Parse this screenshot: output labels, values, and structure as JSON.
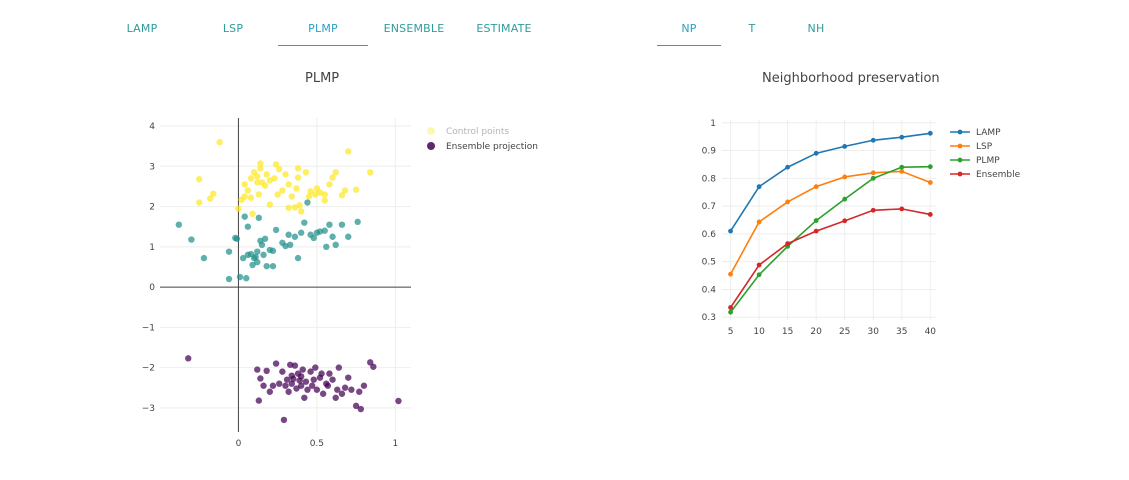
{
  "left_tabs": [
    "LAMP",
    "LSP",
    "PLMP",
    "ENSEMBLE",
    "ESTIMATE"
  ],
  "left_active": "PLMP",
  "right_tabs": [
    "NP",
    "T",
    "NH"
  ],
  "right_active": "NP",
  "colors": {
    "tab_text": "#2e9c9c",
    "tab_active": "#2aa0c0",
    "scatter_groups": [
      "#440154",
      "#21918c",
      "#fde725"
    ],
    "lamp": "#1f77b4",
    "lsp": "#ff7f0e",
    "plmp": "#2ca02c",
    "ensemble": "#d62728"
  },
  "chart_data": [
    {
      "type": "scatter",
      "title": "PLMP",
      "xlabel": "",
      "ylabel": "",
      "xlim": [
        -0.5,
        1.1
      ],
      "ylim": [
        -3.6,
        4.2
      ],
      "x_ticks": [
        0,
        0.5,
        1
      ],
      "y_ticks": [
        4,
        3,
        2,
        1,
        0,
        -1,
        -2,
        -3
      ],
      "legend_position": "top-right",
      "legend": [
        {
          "name": "Control points",
          "color": "#fde725",
          "faded": true
        },
        {
          "name": "Ensemble projection",
          "color": "#440154",
          "faded": false
        }
      ],
      "groups": [
        {
          "color": "#fde725",
          "points": [
            [
              -0.12,
              3.6
            ],
            [
              -0.25,
              2.68
            ],
            [
              -0.25,
              2.1
            ],
            [
              -0.18,
              2.2
            ],
            [
              -0.16,
              2.32
            ],
            [
              0.0,
              1.95
            ],
            [
              0.02,
              2.17
            ],
            [
              0.04,
              2.25
            ],
            [
              0.04,
              2.55
            ],
            [
              0.08,
              2.7
            ],
            [
              0.09,
              1.82
            ],
            [
              0.12,
              2.6
            ],
            [
              0.1,
              2.85
            ],
            [
              0.12,
              2.75
            ],
            [
              0.14,
              2.95
            ],
            [
              0.14,
              3.07
            ],
            [
              0.15,
              2.6
            ],
            [
              0.18,
              2.8
            ],
            [
              0.2,
              2.65
            ],
            [
              0.23,
              2.7
            ],
            [
              0.24,
              3.05
            ],
            [
              0.26,
              2.93
            ],
            [
              0.28,
              2.4
            ],
            [
              0.3,
              2.8
            ],
            [
              0.32,
              2.55
            ],
            [
              0.34,
              2.25
            ],
            [
              0.36,
              1.98
            ],
            [
              0.37,
              2.45
            ],
            [
              0.38,
              2.72
            ],
            [
              0.38,
              2.95
            ],
            [
              0.39,
              2.03
            ],
            [
              0.4,
              1.88
            ],
            [
              0.43,
              2.85
            ],
            [
              0.46,
              2.38
            ],
            [
              0.49,
              2.3
            ],
            [
              0.5,
              2.45
            ],
            [
              0.52,
              2.35
            ],
            [
              0.55,
              2.3
            ],
            [
              0.58,
              2.55
            ],
            [
              0.6,
              2.72
            ],
            [
              0.62,
              2.85
            ],
            [
              0.66,
              2.28
            ],
            [
              0.68,
              2.4
            ],
            [
              0.7,
              3.37
            ],
            [
              0.75,
              2.42
            ],
            [
              0.84,
              2.85
            ],
            [
              0.08,
              2.22
            ],
            [
              0.06,
              2.4
            ],
            [
              0.2,
              2.05
            ],
            [
              0.32,
              1.97
            ],
            [
              0.13,
              2.3
            ],
            [
              0.25,
              2.3
            ],
            [
              0.17,
              2.52
            ],
            [
              0.45,
              2.25
            ],
            [
              0.55,
              2.15
            ]
          ]
        },
        {
          "color": "#21918c",
          "points": [
            [
              -0.38,
              1.55
            ],
            [
              -0.3,
              1.18
            ],
            [
              -0.22,
              0.72
            ],
            [
              -0.06,
              0.88
            ],
            [
              -0.02,
              1.22
            ],
            [
              -0.01,
              1.2
            ],
            [
              0.03,
              0.72
            ],
            [
              0.04,
              1.75
            ],
            [
              0.05,
              0.22
            ],
            [
              0.06,
              0.8
            ],
            [
              0.08,
              0.82
            ],
            [
              0.09,
              0.55
            ],
            [
              0.1,
              0.72
            ],
            [
              0.11,
              0.75
            ],
            [
              0.12,
              0.88
            ],
            [
              0.13,
              1.72
            ],
            [
              0.14,
              1.15
            ],
            [
              0.15,
              1.05
            ],
            [
              0.16,
              0.8
            ],
            [
              0.17,
              1.2
            ],
            [
              0.18,
              0.52
            ],
            [
              0.2,
              0.92
            ],
            [
              0.22,
              0.52
            ],
            [
              0.24,
              1.42
            ],
            [
              0.28,
              1.1
            ],
            [
              0.3,
              1.02
            ],
            [
              0.32,
              1.3
            ],
            [
              0.33,
              1.05
            ],
            [
              0.36,
              1.25
            ],
            [
              0.38,
              0.72
            ],
            [
              0.4,
              1.35
            ],
            [
              0.42,
              1.6
            ],
            [
              0.44,
              2.1
            ],
            [
              0.46,
              1.3
            ],
            [
              0.48,
              1.22
            ],
            [
              0.5,
              1.35
            ],
            [
              0.52,
              1.38
            ],
            [
              0.55,
              1.4
            ],
            [
              0.56,
              1.0
            ],
            [
              0.58,
              1.55
            ],
            [
              0.6,
              1.25
            ],
            [
              0.62,
              1.05
            ],
            [
              0.66,
              1.55
            ],
            [
              0.7,
              1.25
            ],
            [
              0.76,
              1.62
            ],
            [
              -0.06,
              0.2
            ],
            [
              0.01,
              0.25
            ],
            [
              0.06,
              1.5
            ],
            [
              0.12,
              0.62
            ],
            [
              0.22,
              0.9
            ]
          ]
        },
        {
          "color": "#440154",
          "points": [
            [
              -0.32,
              -1.77
            ],
            [
              0.12,
              -2.05
            ],
            [
              0.13,
              -2.82
            ],
            [
              0.14,
              -2.27
            ],
            [
              0.16,
              -2.45
            ],
            [
              0.18,
              -2.08
            ],
            [
              0.2,
              -2.6
            ],
            [
              0.22,
              -2.45
            ],
            [
              0.24,
              -1.9
            ],
            [
              0.26,
              -2.4
            ],
            [
              0.28,
              -2.1
            ],
            [
              0.29,
              -3.3
            ],
            [
              0.3,
              -2.45
            ],
            [
              0.31,
              -2.3
            ],
            [
              0.32,
              -2.6
            ],
            [
              0.33,
              -1.93
            ],
            [
              0.34,
              -2.4
            ],
            [
              0.35,
              -2.28
            ],
            [
              0.36,
              -1.95
            ],
            [
              0.37,
              -2.52
            ],
            [
              0.38,
              -2.15
            ],
            [
              0.39,
              -2.32
            ],
            [
              0.4,
              -2.22
            ],
            [
              0.41,
              -2.05
            ],
            [
              0.42,
              -2.75
            ],
            [
              0.43,
              -2.35
            ],
            [
              0.44,
              -2.55
            ],
            [
              0.46,
              -2.1
            ],
            [
              0.47,
              -2.45
            ],
            [
              0.48,
              -2.3
            ],
            [
              0.49,
              -2.0
            ],
            [
              0.5,
              -2.55
            ],
            [
              0.52,
              -2.25
            ],
            [
              0.53,
              -2.15
            ],
            [
              0.54,
              -2.65
            ],
            [
              0.56,
              -2.4
            ],
            [
              0.57,
              -2.45
            ],
            [
              0.58,
              -2.15
            ],
            [
              0.6,
              -2.3
            ],
            [
              0.62,
              -2.75
            ],
            [
              0.63,
              -2.55
            ],
            [
              0.64,
              -2.0
            ],
            [
              0.66,
              -2.65
            ],
            [
              0.68,
              -2.5
            ],
            [
              0.7,
              -2.25
            ],
            [
              0.72,
              -2.55
            ],
            [
              0.75,
              -2.95
            ],
            [
              0.77,
              -2.6
            ],
            [
              0.78,
              -3.03
            ],
            [
              0.8,
              -2.45
            ],
            [
              0.84,
              -1.87
            ],
            [
              0.86,
              -1.98
            ],
            [
              1.02,
              -2.83
            ],
            [
              0.34,
              -2.2
            ],
            [
              0.4,
              -2.45
            ]
          ]
        }
      ]
    },
    {
      "type": "line",
      "title": "Neighborhood preservation",
      "xlabel": "",
      "ylabel": "",
      "x": [
        5,
        10,
        15,
        20,
        25,
        30,
        35,
        40
      ],
      "xlim": [
        3.5,
        41
      ],
      "ylim": [
        0.29,
        1.01
      ],
      "y_ticks": [
        1,
        0.9,
        0.8,
        0.7,
        0.6,
        0.5,
        0.4,
        0.3
      ],
      "x_ticks": [
        5,
        10,
        15,
        20,
        25,
        30,
        35,
        40
      ],
      "legend_position": "top-right",
      "series": [
        {
          "name": "LAMP",
          "color": "#1f77b4",
          "values": [
            0.61,
            0.77,
            0.84,
            0.89,
            0.915,
            0.937,
            0.948,
            0.962
          ]
        },
        {
          "name": "LSP",
          "color": "#ff7f0e",
          "values": [
            0.455,
            0.643,
            0.715,
            0.77,
            0.805,
            0.82,
            0.825,
            0.785
          ]
        },
        {
          "name": "PLMP",
          "color": "#2ca02c",
          "values": [
            0.318,
            0.453,
            0.555,
            0.648,
            0.725,
            0.8,
            0.84,
            0.842
          ]
        },
        {
          "name": "Ensemble",
          "color": "#d62728",
          "values": [
            0.335,
            0.488,
            0.565,
            0.61,
            0.647,
            0.685,
            0.69,
            0.67
          ]
        }
      ]
    }
  ]
}
